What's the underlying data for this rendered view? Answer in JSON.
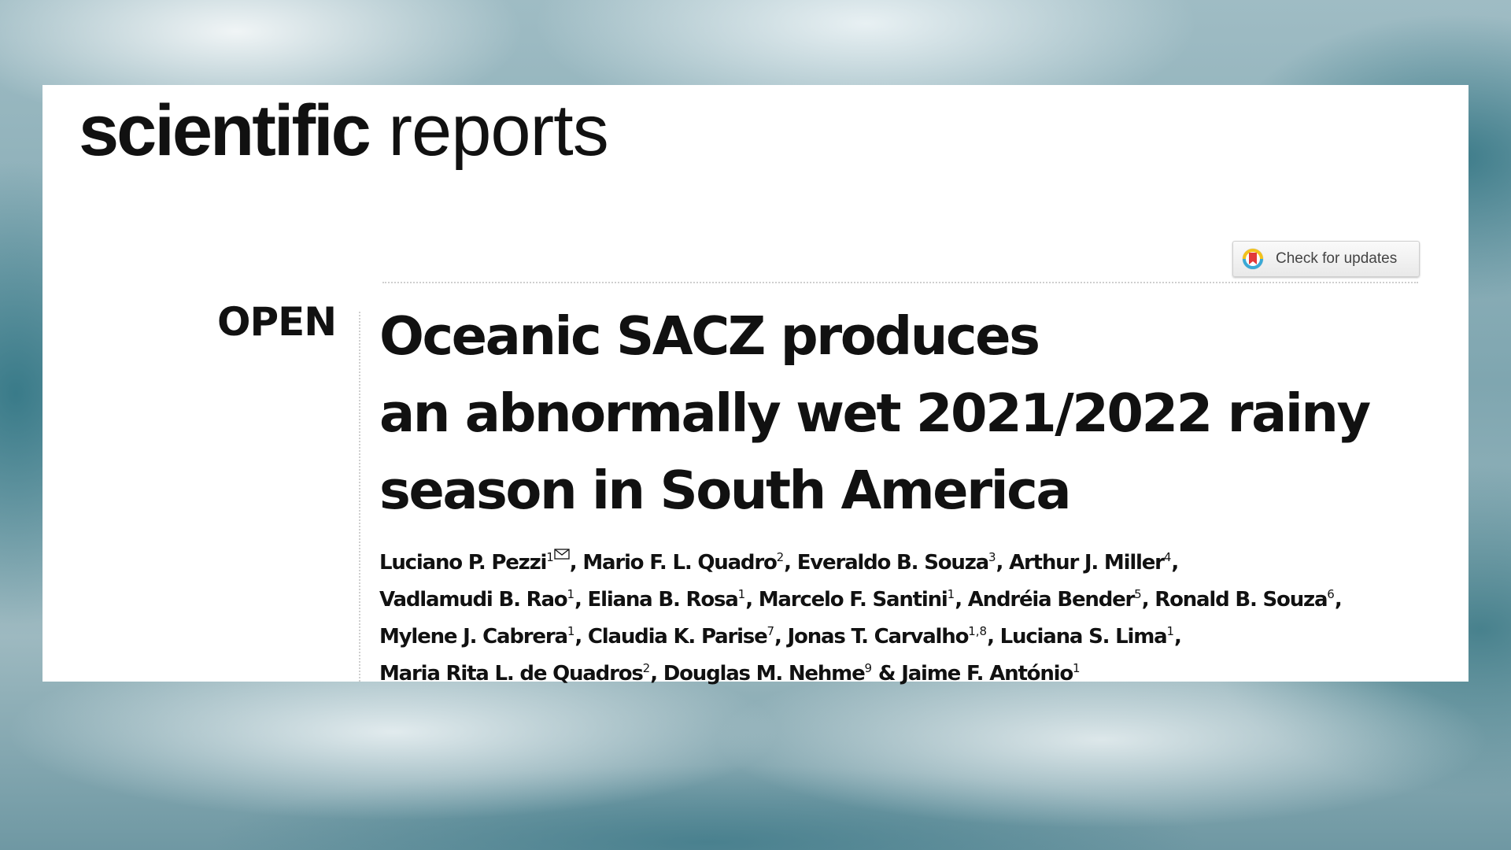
{
  "journal": {
    "name_bold": "scientific",
    "name_light": "reports"
  },
  "check_updates": {
    "label": "Check for updates",
    "icon": "crossmark-icon"
  },
  "article": {
    "access": "OPEN",
    "title_lines": [
      "Oceanic SACZ produces",
      "an abnormally wet 2021/2022 rainy",
      "season in South America"
    ]
  },
  "authors": [
    {
      "name": "Luciano P. Pezzi",
      "aff": "1",
      "corresponding": true,
      "sep": ", "
    },
    {
      "name": "Mario F. L. Quadro",
      "aff": "2",
      "sep": ", "
    },
    {
      "name": "Everaldo B. Souza",
      "aff": "3",
      "sep": ", "
    },
    {
      "name": "Arthur J. Miller",
      "aff": "4",
      "sep": ","
    },
    {
      "name": "Vadlamudi B. Rao",
      "aff": "1",
      "sep": ", "
    },
    {
      "name": "Eliana B. Rosa",
      "aff": "1",
      "sep": ", "
    },
    {
      "name": "Marcelo F. Santini",
      "aff": "1",
      "sep": ", "
    },
    {
      "name": "Andréia Bender",
      "aff": "5",
      "sep": ", "
    },
    {
      "name": "Ronald B. Souza",
      "aff": "6",
      "sep": ","
    },
    {
      "name": "Mylene J. Cabrera",
      "aff": "1",
      "sep": ", "
    },
    {
      "name": "Claudia K. Parise",
      "aff": "7",
      "sep": ", "
    },
    {
      "name": "Jonas T. Carvalho",
      "aff": "1,8",
      "sep": ", "
    },
    {
      "name": "Luciana S. Lima",
      "aff": "1",
      "sep": ","
    },
    {
      "name": "Maria Rita L. de Quadros",
      "aff": "2",
      "sep": ", "
    },
    {
      "name": "Douglas M. Nehme",
      "aff": "9",
      "sep": " & "
    },
    {
      "name": "Jaime F. António",
      "aff": "1",
      "sep": ""
    }
  ]
}
